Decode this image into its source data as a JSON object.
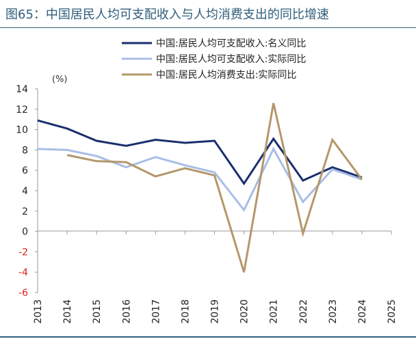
{
  "figure_title": "图65：中国居民人均可支配收入与人均消费支出的同比增速",
  "chart_data": {
    "type": "line",
    "title": "图65：中国居民人均可支配收入与人均消费支出的同比增速",
    "unit_label": "(%)",
    "xlabel": "",
    "ylabel": "(%)",
    "categories": [
      "2013",
      "2014",
      "2015",
      "2016",
      "2017",
      "2018",
      "2019",
      "2020",
      "2021",
      "2022",
      "2023",
      "2024",
      "2025"
    ],
    "ylim": [
      -6,
      14
    ],
    "yticks": [
      -6,
      -4,
      -2,
      0,
      2,
      4,
      6,
      8,
      10,
      12,
      14
    ],
    "ytick_labels": [
      "-6",
      "-4",
      "-2",
      "0",
      "2",
      "4",
      "6",
      "8",
      "10",
      "12",
      "14"
    ],
    "negative_tick_color": "#e02020",
    "grid": false,
    "legend_position": "top-right",
    "series": [
      {
        "name": "中国:居民人均可支配收入:名义同比",
        "color": "#1a2e6e",
        "values": [
          10.9,
          10.1,
          8.9,
          8.4,
          9.0,
          8.7,
          8.9,
          4.7,
          9.1,
          5.0,
          6.3,
          5.3,
          null
        ]
      },
      {
        "name": "中国:居民人均可支配收入:实际同比",
        "color": "#a9bde6",
        "values": [
          8.1,
          8.0,
          7.4,
          6.3,
          7.3,
          6.5,
          5.8,
          2.1,
          8.1,
          2.9,
          6.1,
          5.1,
          null
        ]
      },
      {
        "name": "中国:居民人均消费支出:实际同比",
        "color": "#b5976a",
        "values": [
          null,
          7.5,
          6.9,
          6.8,
          5.4,
          6.2,
          5.5,
          -4.0,
          12.6,
          -0.2,
          9.0,
          5.1,
          null
        ]
      }
    ]
  }
}
